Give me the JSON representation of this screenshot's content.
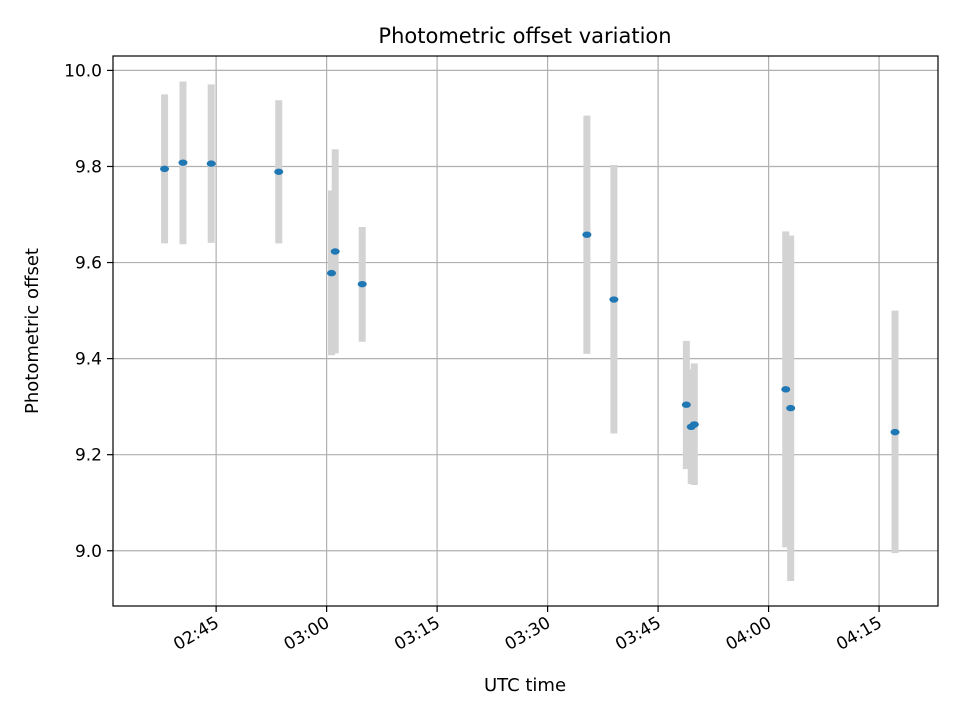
{
  "chart_data": {
    "type": "scatter",
    "title": "Photometric offset variation",
    "xlabel": "UTC time",
    "ylabel": "Photometric offset",
    "xlim": [
      "02:31:00",
      "04:23:00"
    ],
    "ylim": [
      8.885,
      10.03
    ],
    "x_ticks": [
      "02:45",
      "03:00",
      "03:15",
      "03:30",
      "03:45",
      "04:00",
      "04:15"
    ],
    "y_ticks": [
      "9.0",
      "9.2",
      "9.4",
      "9.6",
      "9.8",
      "10.0"
    ],
    "grid": true,
    "colors": {
      "point": "#1f77b4",
      "errorbar": "#d3d3d3",
      "grid": "#b0b0b0"
    },
    "points": [
      {
        "time": "02:38:00",
        "y": 9.795,
        "ylow": 9.64,
        "yhigh": 9.95
      },
      {
        "time": "02:40:30",
        "y": 9.808,
        "ylow": 9.638,
        "yhigh": 9.977
      },
      {
        "time": "02:44:20",
        "y": 9.806,
        "ylow": 9.641,
        "yhigh": 9.971
      },
      {
        "time": "02:53:30",
        "y": 9.789,
        "ylow": 9.64,
        "yhigh": 9.938
      },
      {
        "time": "03:00:40",
        "y": 9.578,
        "ylow": 9.407,
        "yhigh": 9.75
      },
      {
        "time": "03:01:10",
        "y": 9.623,
        "ylow": 9.411,
        "yhigh": 9.836
      },
      {
        "time": "03:04:50",
        "y": 9.555,
        "ylow": 9.435,
        "yhigh": 9.674
      },
      {
        "time": "03:35:20",
        "y": 9.658,
        "ylow": 9.41,
        "yhigh": 9.906
      },
      {
        "time": "03:39:00",
        "y": 9.523,
        "ylow": 9.244,
        "yhigh": 9.803
      },
      {
        "time": "03:48:50",
        "y": 9.304,
        "ylow": 9.17,
        "yhigh": 9.437
      },
      {
        "time": "03:49:30",
        "y": 9.258,
        "ylow": 9.139,
        "yhigh": 9.378
      },
      {
        "time": "03:49:55",
        "y": 9.263,
        "ylow": 9.137,
        "yhigh": 9.39
      },
      {
        "time": "04:02:20",
        "y": 9.336,
        "ylow": 9.007,
        "yhigh": 9.665
      },
      {
        "time": "04:03:00",
        "y": 9.297,
        "ylow": 8.937,
        "yhigh": 9.656
      },
      {
        "time": "04:17:10",
        "y": 9.247,
        "ylow": 8.995,
        "yhigh": 9.5
      }
    ]
  }
}
